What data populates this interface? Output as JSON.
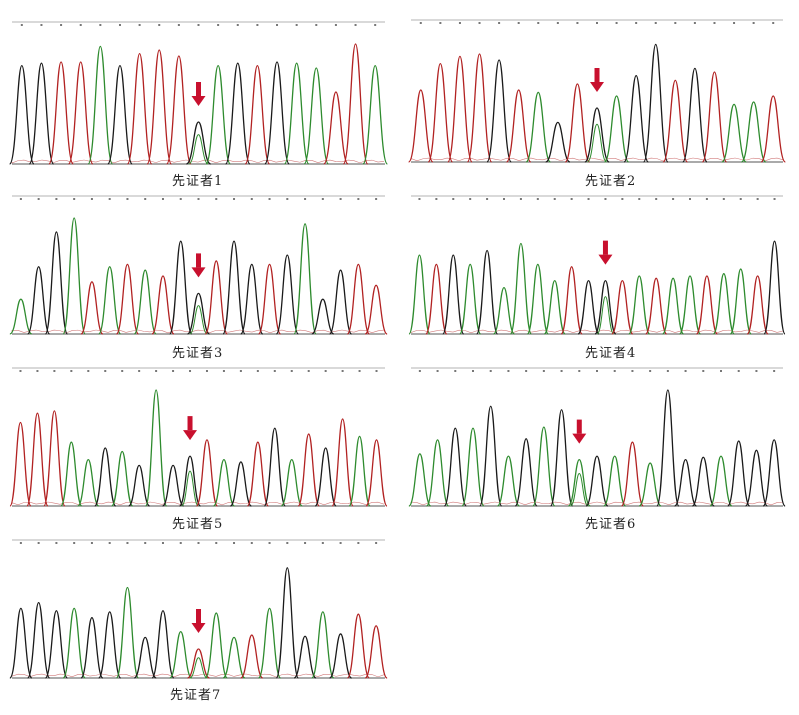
{
  "chart_data": [
    {
      "type": "line",
      "title": "先证者1",
      "series": [
        {
          "color": "#1e1e1e",
          "values": [
            0.1,
            0.2,
            0.1,
            0.1,
            0.85,
            0.1,
            0.2,
            0.1,
            0.1,
            0.1,
            0.85,
            0.1,
            0.1,
            0.2,
            0.1,
            0.2,
            0.1,
            0.1,
            0.1
          ]
        },
        {
          "color": "#2e8b2e",
          "values": [
            0.1,
            0.1,
            0.2,
            0.1,
            0.1,
            0.95,
            0.1,
            0.1,
            0.1,
            0.1,
            0.1,
            0.1,
            0.82,
            0.1,
            0.1,
            0.1,
            0.85,
            0.1,
            0.1,
            0.1,
            0.1,
            0.1,
            0.82
          ]
        },
        {
          "color": "#b22222",
          "values": [
            0.82,
            0.1,
            0.88,
            0.1,
            0.1,
            0.1,
            0.9,
            0.93,
            0.88,
            0.1,
            0.1,
            0.1,
            0.1,
            0.1,
            0.1,
            0.82,
            0.1,
            0.1,
            0.1,
            0.6,
            1.0,
            0.1
          ]
        }
      ],
      "peaks": [
        {
          "c": "k",
          "h": 0.82
        },
        {
          "c": "k",
          "h": 0.84
        },
        {
          "c": "r",
          "h": 0.85
        },
        {
          "c": "r",
          "h": 0.85
        },
        {
          "c": "g",
          "h": 0.98
        },
        {
          "c": "k",
          "h": 0.82
        },
        {
          "c": "r",
          "h": 0.92
        },
        {
          "c": "r",
          "h": 0.95
        },
        {
          "c": "r",
          "h": 0.9
        },
        {
          "c": "k",
          "h": 0.35,
          "arrow": true
        },
        {
          "c": "g",
          "h": 0.82
        },
        {
          "c": "k",
          "h": 0.84
        },
        {
          "c": "r",
          "h": 0.82
        },
        {
          "c": "k",
          "h": 0.85
        },
        {
          "c": "g",
          "h": 0.84
        },
        {
          "c": "g",
          "h": 0.8
        },
        {
          "c": "r",
          "h": 0.6
        },
        {
          "c": "r",
          "h": 1.0
        },
        {
          "c": "g",
          "h": 0.82
        }
      ]
    },
    {
      "type": "line",
      "title": "先证者2",
      "peaks": [
        {
          "c": "r",
          "h": 0.6
        },
        {
          "c": "r",
          "h": 0.82
        },
        {
          "c": "r",
          "h": 0.88
        },
        {
          "c": "r",
          "h": 0.9
        },
        {
          "c": "k",
          "h": 0.85
        },
        {
          "c": "r",
          "h": 0.6
        },
        {
          "c": "g",
          "h": 0.58
        },
        {
          "c": "k",
          "h": 0.33
        },
        {
          "c": "r",
          "h": 0.65
        },
        {
          "c": "k",
          "h": 0.45,
          "arrow": true
        },
        {
          "c": "g",
          "h": 0.55
        },
        {
          "c": "k",
          "h": 0.72
        },
        {
          "c": "k",
          "h": 0.98
        },
        {
          "c": "r",
          "h": 0.68
        },
        {
          "c": "k",
          "h": 0.78
        },
        {
          "c": "r",
          "h": 0.75
        },
        {
          "c": "g",
          "h": 0.48
        },
        {
          "c": "g",
          "h": 0.5
        },
        {
          "c": "r",
          "h": 0.55
        }
      ]
    },
    {
      "type": "line",
      "title": "先证者3",
      "peaks": [
        {
          "c": "g",
          "h": 0.3
        },
        {
          "c": "k",
          "h": 0.58
        },
        {
          "c": "k",
          "h": 0.88
        },
        {
          "c": "g",
          "h": 1.0
        },
        {
          "c": "r",
          "h": 0.45
        },
        {
          "c": "g",
          "h": 0.58
        },
        {
          "c": "r",
          "h": 0.6
        },
        {
          "c": "g",
          "h": 0.55
        },
        {
          "c": "r",
          "h": 0.5
        },
        {
          "c": "k",
          "h": 0.8
        },
        {
          "c": "k",
          "h": 0.35,
          "arrow": true
        },
        {
          "c": "r",
          "h": 0.63
        },
        {
          "c": "k",
          "h": 0.8
        },
        {
          "c": "k",
          "h": 0.6
        },
        {
          "c": "r",
          "h": 0.6
        },
        {
          "c": "k",
          "h": 0.68
        },
        {
          "c": "g",
          "h": 0.95
        },
        {
          "c": "k",
          "h": 0.3
        },
        {
          "c": "k",
          "h": 0.55
        },
        {
          "c": "r",
          "h": 0.6
        },
        {
          "c": "r",
          "h": 0.42
        }
      ]
    },
    {
      "type": "line",
      "title": "先证者4",
      "peaks": [
        {
          "c": "g",
          "h": 0.68
        },
        {
          "c": "r",
          "h": 0.6
        },
        {
          "c": "k",
          "h": 0.68
        },
        {
          "c": "g",
          "h": 0.6
        },
        {
          "c": "k",
          "h": 0.72
        },
        {
          "c": "g",
          "h": 0.4
        },
        {
          "c": "g",
          "h": 0.78
        },
        {
          "c": "g",
          "h": 0.6
        },
        {
          "c": "g",
          "h": 0.46
        },
        {
          "c": "r",
          "h": 0.58
        },
        {
          "c": "k",
          "h": 0.46
        },
        {
          "c": "k",
          "h": 0.46,
          "arrow": true
        },
        {
          "c": "r",
          "h": 0.46
        },
        {
          "c": "g",
          "h": 0.5
        },
        {
          "c": "r",
          "h": 0.48
        },
        {
          "c": "g",
          "h": 0.48
        },
        {
          "c": "g",
          "h": 0.5
        },
        {
          "c": "r",
          "h": 0.5
        },
        {
          "c": "g",
          "h": 0.52
        },
        {
          "c": "g",
          "h": 0.56
        },
        {
          "c": "r",
          "h": 0.5
        },
        {
          "c": "k",
          "h": 0.8
        }
      ]
    },
    {
      "type": "line",
      "title": "先证者5",
      "peaks": [
        {
          "c": "r",
          "h": 0.72
        },
        {
          "c": "r",
          "h": 0.8
        },
        {
          "c": "r",
          "h": 0.82
        },
        {
          "c": "g",
          "h": 0.55
        },
        {
          "c": "g",
          "h": 0.4
        },
        {
          "c": "k",
          "h": 0.5
        },
        {
          "c": "g",
          "h": 0.47
        },
        {
          "c": "k",
          "h": 0.35
        },
        {
          "c": "g",
          "h": 1.0
        },
        {
          "c": "k",
          "h": 0.35
        },
        {
          "c": "k",
          "h": 0.43,
          "arrow": true
        },
        {
          "c": "r",
          "h": 0.57
        },
        {
          "c": "g",
          "h": 0.4
        },
        {
          "c": "k",
          "h": 0.38
        },
        {
          "c": "r",
          "h": 0.55
        },
        {
          "c": "k",
          "h": 0.67
        },
        {
          "c": "g",
          "h": 0.4
        },
        {
          "c": "r",
          "h": 0.62
        },
        {
          "c": "k",
          "h": 0.5
        },
        {
          "c": "r",
          "h": 0.75
        },
        {
          "c": "g",
          "h": 0.6
        },
        {
          "c": "r",
          "h": 0.57
        }
      ]
    },
    {
      "type": "line",
      "title": "先证者6",
      "peaks": [
        {
          "c": "g",
          "h": 0.45
        },
        {
          "c": "g",
          "h": 0.57
        },
        {
          "c": "k",
          "h": 0.67
        },
        {
          "c": "g",
          "h": 0.67
        },
        {
          "c": "k",
          "h": 0.86
        },
        {
          "c": "g",
          "h": 0.43
        },
        {
          "c": "k",
          "h": 0.58
        },
        {
          "c": "g",
          "h": 0.68
        },
        {
          "c": "k",
          "h": 0.83
        },
        {
          "c": "g",
          "h": 0.4,
          "arrow": true
        },
        {
          "c": "k",
          "h": 0.43
        },
        {
          "c": "g",
          "h": 0.43
        },
        {
          "c": "r",
          "h": 0.55
        },
        {
          "c": "g",
          "h": 0.37
        },
        {
          "c": "k",
          "h": 1.0
        },
        {
          "c": "k",
          "h": 0.4
        },
        {
          "c": "k",
          "h": 0.42
        },
        {
          "c": "g",
          "h": 0.43
        },
        {
          "c": "k",
          "h": 0.56
        },
        {
          "c": "k",
          "h": 0.48
        },
        {
          "c": "k",
          "h": 0.57
        }
      ]
    },
    {
      "type": "line",
      "title": "先证者7",
      "peaks": [
        {
          "c": "k",
          "h": 0.6
        },
        {
          "c": "k",
          "h": 0.65
        },
        {
          "c": "k",
          "h": 0.58
        },
        {
          "c": "g",
          "h": 0.6
        },
        {
          "c": "k",
          "h": 0.52
        },
        {
          "c": "k",
          "h": 0.57
        },
        {
          "c": "g",
          "h": 0.78
        },
        {
          "c": "k",
          "h": 0.35
        },
        {
          "c": "k",
          "h": 0.58
        },
        {
          "c": "g",
          "h": 0.4
        },
        {
          "c": "r",
          "h": 0.25,
          "arrow": true
        },
        {
          "c": "g",
          "h": 0.56
        },
        {
          "c": "g",
          "h": 0.35
        },
        {
          "c": "r",
          "h": 0.37
        },
        {
          "c": "g",
          "h": 0.6
        },
        {
          "c": "k",
          "h": 0.95
        },
        {
          "c": "k",
          "h": 0.36
        },
        {
          "c": "g",
          "h": 0.57
        },
        {
          "c": "k",
          "h": 0.38
        },
        {
          "c": "r",
          "h": 0.55
        },
        {
          "c": "r",
          "h": 0.45
        }
      ]
    }
  ]
}
